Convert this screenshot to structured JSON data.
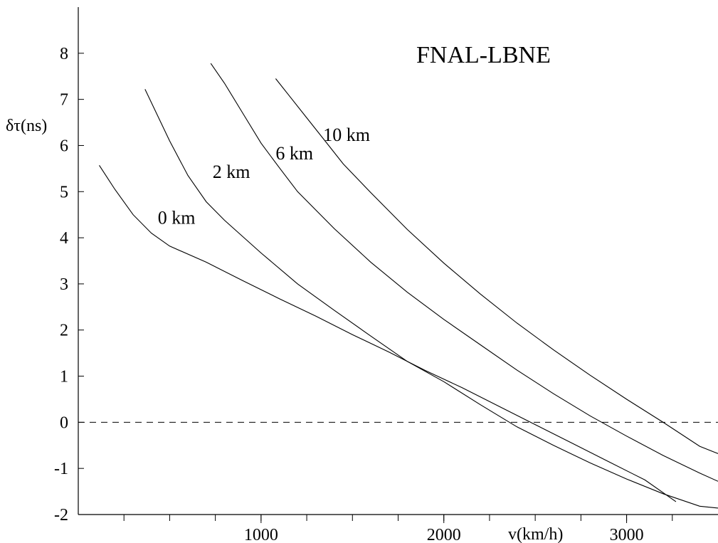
{
  "chart_data": {
    "type": "line",
    "title": "FNAL-LBNE",
    "xlabel": "v(km/h)",
    "ylabel": "δτ(ns)",
    "xlim": [
      0,
      3500
    ],
    "ylim": [
      -2,
      9
    ],
    "x_ticks": [
      1000,
      2000,
      3000
    ],
    "x_minor_ticks": [
      250,
      500,
      750,
      1000,
      1250,
      1500,
      1750,
      2000,
      2250,
      2500,
      2750,
      3000,
      3250
    ],
    "y_ticks": [
      -2,
      -1,
      0,
      1,
      2,
      3,
      4,
      5,
      6,
      7,
      8
    ],
    "y_tick_labels": [
      "-2",
      "-1",
      "0",
      "1",
      "2",
      "3",
      "4",
      "5",
      "6",
      "7",
      "8"
    ],
    "reference_line": {
      "y": 0,
      "style": "dashed"
    },
    "grid": false,
    "legend": "none",
    "series": [
      {
        "name": "0 km",
        "x": [
          115,
          200,
          300,
          400,
          500,
          700,
          900,
          1100,
          1300,
          1500,
          1700,
          1900,
          2100,
          2300,
          2500,
          2700,
          2900,
          3100,
          3270
        ],
        "y": [
          5.57,
          5.05,
          4.5,
          4.1,
          3.82,
          3.47,
          3.07,
          2.68,
          2.3,
          1.9,
          1.52,
          1.12,
          0.75,
          0.35,
          -0.05,
          -0.45,
          -0.85,
          -1.25,
          -1.72
        ]
      },
      {
        "name": "2 km",
        "x": [
          365,
          500,
          600,
          700,
          800,
          1000,
          1200,
          1400,
          1600,
          1800,
          2000,
          2200,
          2400,
          2600,
          2800,
          3000,
          3200,
          3400,
          3500
        ],
        "y": [
          7.22,
          6.1,
          5.35,
          4.78,
          4.38,
          3.67,
          3.0,
          2.43,
          1.87,
          1.32,
          0.88,
          0.38,
          -0.1,
          -0.5,
          -0.88,
          -1.23,
          -1.55,
          -1.82,
          -1.86
        ]
      },
      {
        "name": "6 km",
        "x": [
          725,
          800,
          900,
          1000,
          1100,
          1200,
          1400,
          1600,
          1800,
          2000,
          2200,
          2400,
          2600,
          2800,
          3000,
          3200,
          3400,
          3500
        ],
        "y": [
          7.78,
          7.35,
          6.7,
          6.05,
          5.52,
          5.0,
          4.2,
          3.47,
          2.82,
          2.23,
          1.68,
          1.13,
          0.62,
          0.14,
          -0.3,
          -0.72,
          -1.1,
          -1.28
        ]
      },
      {
        "name": "10 km",
        "x": [
          1080,
          1150,
          1250,
          1350,
          1450,
          1600,
          1800,
          2000,
          2200,
          2400,
          2600,
          2800,
          3000,
          3200,
          3400,
          3500
        ],
        "y": [
          7.45,
          7.1,
          6.6,
          6.1,
          5.6,
          4.98,
          4.18,
          3.45,
          2.78,
          2.15,
          1.57,
          1.02,
          0.5,
          0.0,
          -0.52,
          -0.68
        ]
      }
    ],
    "curve_labels": [
      {
        "text": "0 km",
        "x": 435,
        "y": 4.3
      },
      {
        "text": "2 km",
        "x": 735,
        "y": 5.3
      },
      {
        "text": "6 km",
        "x": 1080,
        "y": 5.7
      },
      {
        "text": "10 km",
        "x": 1340,
        "y": 6.1
      }
    ]
  }
}
